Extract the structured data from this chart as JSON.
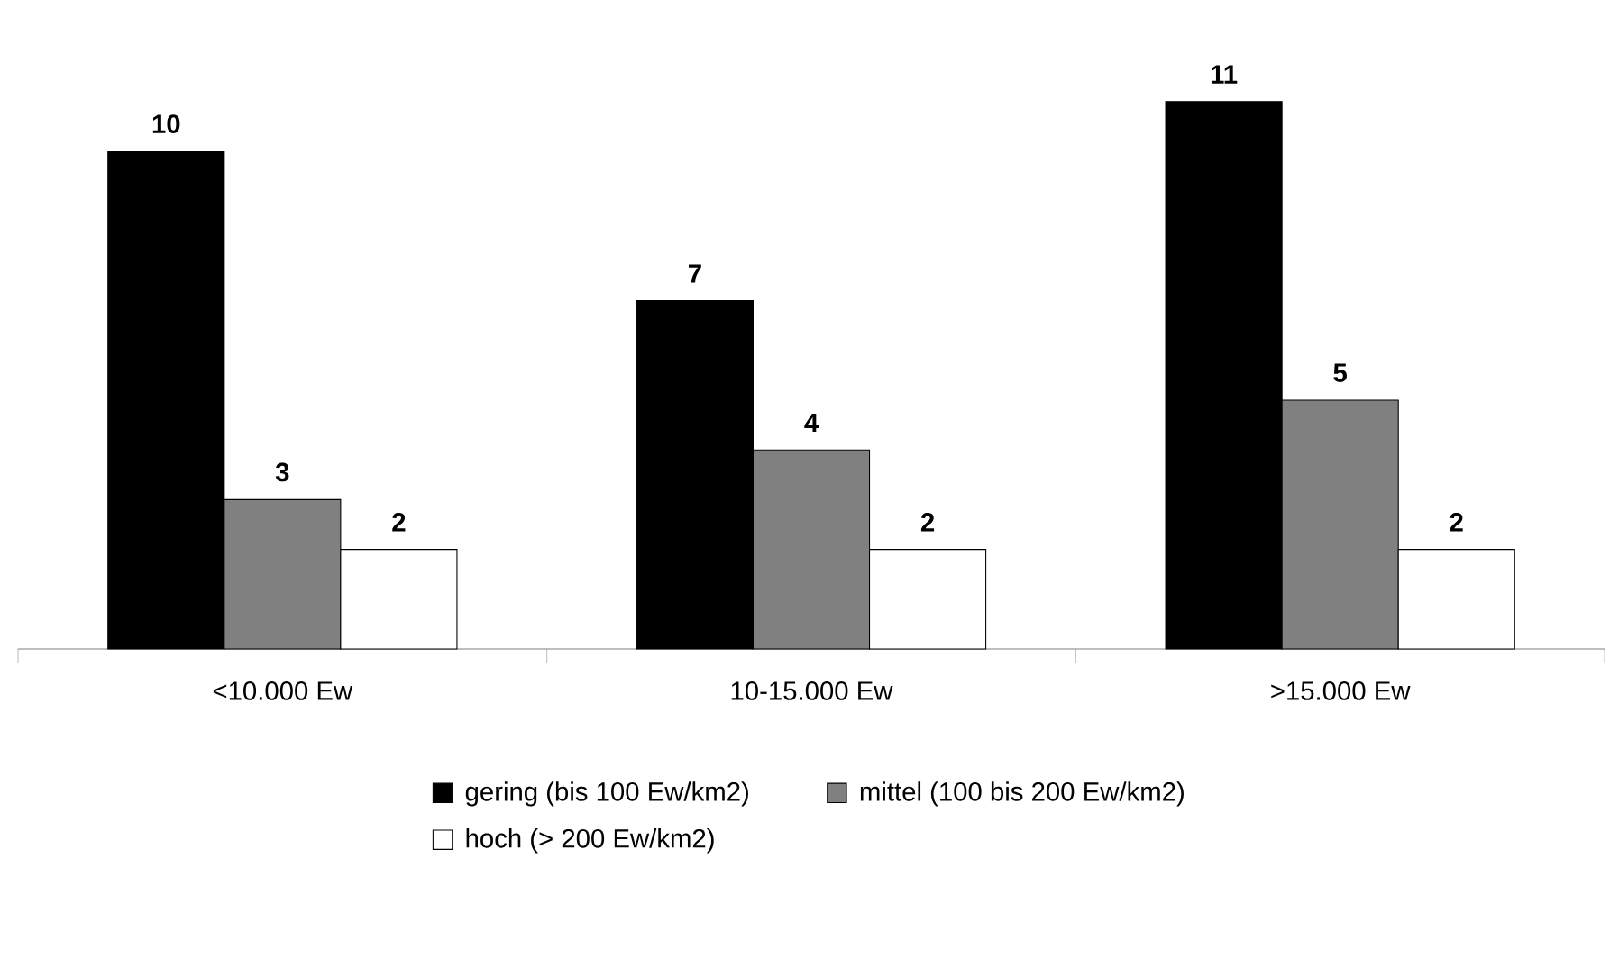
{
  "chart_data": {
    "type": "bar",
    "categories": [
      "<10.000 Ew",
      "10-15.000 Ew",
      ">15.000 Ew"
    ],
    "series": [
      {
        "name": "gering (bis 100 Ew/km2)",
        "color": "#000000",
        "values": [
          10,
          7,
          11
        ]
      },
      {
        "name": "mittel (100 bis 200 Ew/km2)",
        "color": "#808080",
        "values": [
          3,
          4,
          5
        ]
      },
      {
        "name": "hoch (> 200 Ew/km2)",
        "color": "#ffffff",
        "values": [
          2,
          2,
          2
        ]
      }
    ],
    "tick_labels": "x",
    "data_labels": true,
    "legend": "bottom"
  }
}
